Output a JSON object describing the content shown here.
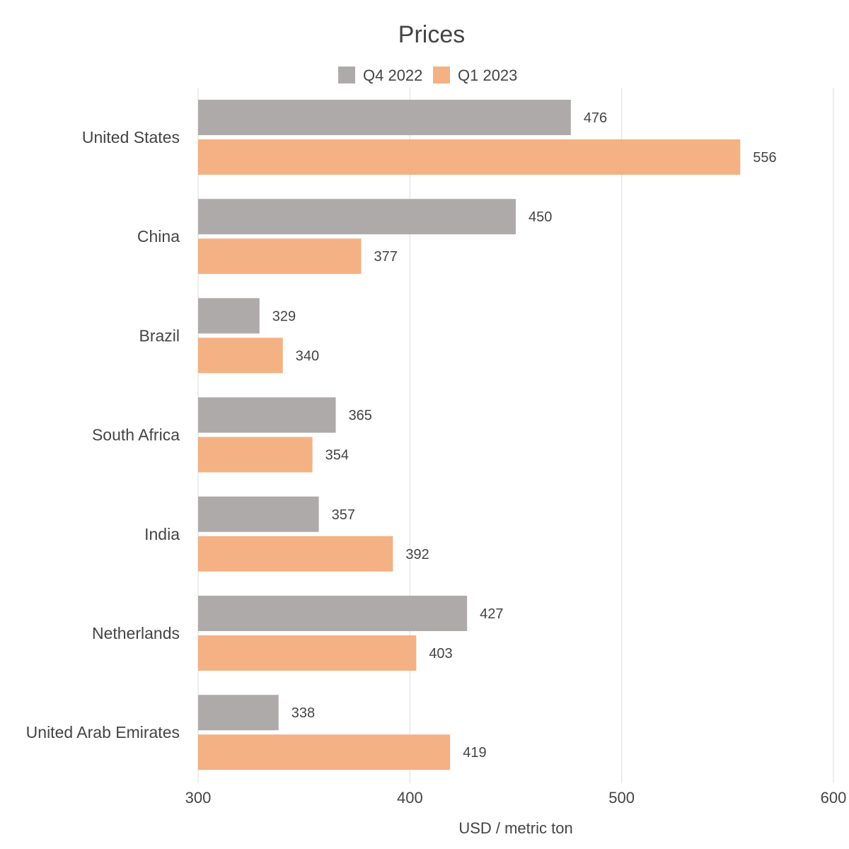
{
  "chart_data": {
    "type": "bar",
    "orientation": "horizontal",
    "title": "Prices",
    "xlabel": "USD / metric ton",
    "ylabel": "",
    "xlim": [
      300,
      600
    ],
    "xticks": [
      300,
      400,
      500,
      600
    ],
    "grid": true,
    "legend_position": "top-center",
    "categories": [
      "United States",
      "China",
      "Brazil",
      "South Africa",
      "India",
      "Netherlands",
      "United Arab Emirates"
    ],
    "series": [
      {
        "name": "Q4 2022",
        "color": "#aeaaa9",
        "values": [
          476,
          450,
          329,
          365,
          357,
          427,
          338
        ]
      },
      {
        "name": "Q1 2023",
        "color": "#f4b183",
        "values": [
          556,
          377,
          340,
          354,
          392,
          403,
          419
        ]
      }
    ]
  }
}
